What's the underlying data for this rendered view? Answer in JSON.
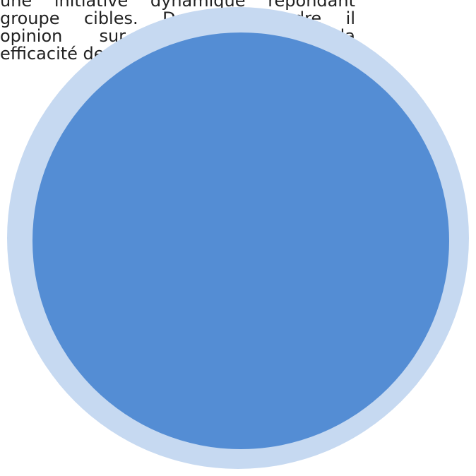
{
  "document": {
    "lines": [
      "une initiative dynamique répondant",
      "groupe cibles. Dans ce cadre il",
      "opinion sur l'efficacité et la",
      "efficacité de"
    ]
  },
  "shape": {
    "ring_color": "#c6d9f1",
    "fill_color": "#548dd4"
  }
}
